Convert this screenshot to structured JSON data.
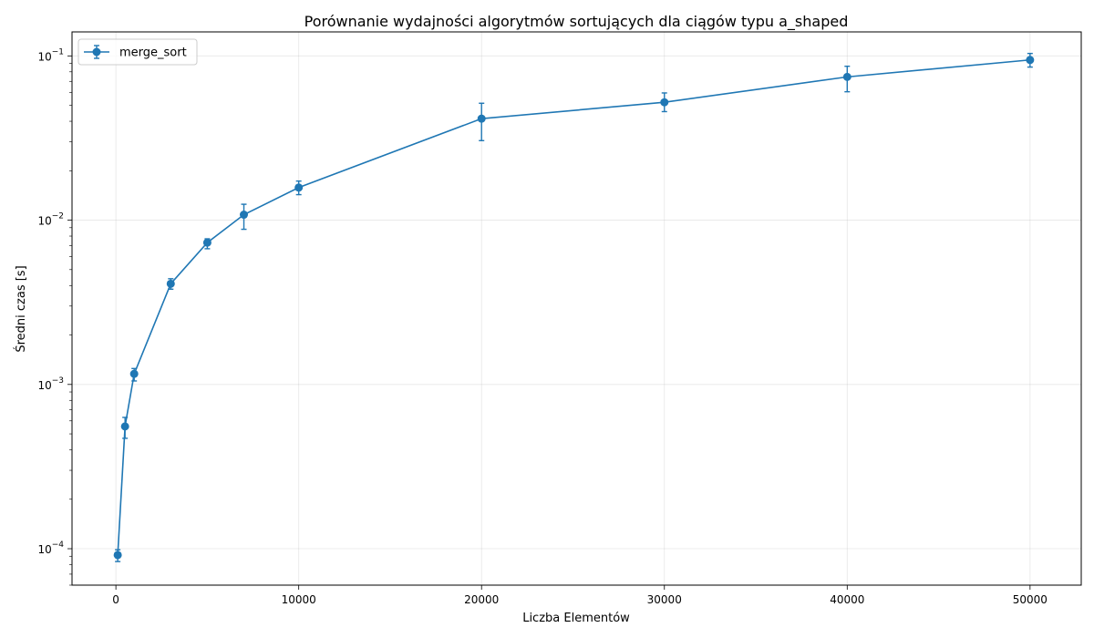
{
  "chart_data": {
    "type": "line",
    "title": "Porównanie wydajności algorytmów sortujących dla ciągów typu a_shaped",
    "xlabel": "Liczba Elementów",
    "ylabel": "Średni czas [s]",
    "xlim": [
      -2400,
      52800
    ],
    "ylim": [
      6e-05,
      0.14
    ],
    "yscale": "log",
    "grid": true,
    "legend": "top-left",
    "x_ticks": [
      0,
      10000,
      20000,
      30000,
      40000,
      50000
    ],
    "x_tick_labels": [
      "0",
      "10000",
      "20000",
      "30000",
      "40000",
      "50000"
    ],
    "y_ticks": [
      {
        "value": 0.0001,
        "base": "10",
        "exp": "−4"
      },
      {
        "value": 0.001,
        "base": "10",
        "exp": "−3"
      },
      {
        "value": 0.01,
        "base": "10",
        "exp": "−2"
      },
      {
        "value": 0.1,
        "base": "10",
        "exp": "−1"
      }
    ],
    "series": [
      {
        "name": "merge_sort",
        "color": "#1f77b4",
        "x": [
          100,
          500,
          1000,
          3000,
          5000,
          7000,
          10000,
          20000,
          30000,
          40000,
          50000
        ],
        "y": [
          9.15e-05,
          0.000555,
          0.00116,
          0.0041,
          0.0073,
          0.0108,
          0.0158,
          0.0415,
          0.0522,
          0.0745,
          0.0945
        ],
        "err_low": [
          8.35e-05,
          0.00047,
          0.00105,
          0.0038,
          0.0067,
          0.0088,
          0.0143,
          0.0305,
          0.0458,
          0.0605,
          0.0855
        ],
        "err_high": [
          9.85e-05,
          0.00063,
          0.00125,
          0.0044,
          0.0077,
          0.0125,
          0.0173,
          0.0515,
          0.0595,
          0.0865,
          0.1035
        ]
      }
    ]
  }
}
